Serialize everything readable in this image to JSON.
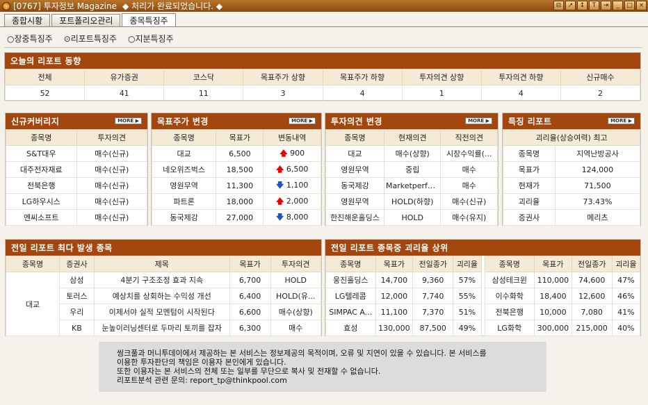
{
  "window": {
    "title": "[0767] 투자정보 Magazine",
    "status": "◆ 처리가 완료되었습니다. ◆",
    "controls": [
      "⊟",
      "↗",
      "↕",
      "T",
      "⇥",
      "_",
      "□",
      "×"
    ]
  },
  "tabs": [
    "종합시황",
    "포트폴리오관리",
    "종목특징주"
  ],
  "radios": [
    "○장중특징주",
    "⊙리포트특징주",
    "○지분특징주"
  ],
  "more": "MORE ▶",
  "today": {
    "title": "오늘의 리포트 동향",
    "headers": [
      "전체",
      "유가증권",
      "코스닥",
      "목표주가 상향",
      "목표주가 하향",
      "투자의견 상향",
      "투자의견 하향",
      "신규매수"
    ],
    "values": [
      "52",
      "41",
      "11",
      "3",
      "4",
      "1",
      "4",
      "2"
    ]
  },
  "coverage": {
    "title": "신규커버리지",
    "headers": [
      "종목명",
      "투자의견"
    ],
    "rows": [
      [
        "S&T대우",
        "매수(신규)"
      ],
      [
        "대주전자재료",
        "매수(신규)"
      ],
      [
        "전북은행",
        "매수(신규)"
      ],
      [
        "LG하우시스",
        "매수(신규)"
      ],
      [
        "엔씨소프트",
        "매수(신규)"
      ]
    ]
  },
  "target": {
    "title": "목표주가 변경",
    "headers": [
      "종목명",
      "목표가",
      "변동내역"
    ],
    "rows": [
      {
        "name": "대교",
        "price": "6,500",
        "dir": "up",
        "change": "900"
      },
      {
        "name": "네오위즈벅스",
        "price": "18,500",
        "dir": "up",
        "change": "6,500"
      },
      {
        "name": "영원무역",
        "price": "11,300",
        "dir": "down",
        "change": "1,100"
      },
      {
        "name": "파트론",
        "price": "18,000",
        "dir": "up",
        "change": "2,000"
      },
      {
        "name": "동국제강",
        "price": "27,000",
        "dir": "down",
        "change": "8,000"
      }
    ]
  },
  "opinion": {
    "title": "투자의견 변경",
    "headers": [
      "종목명",
      "현재의견",
      "직전의견"
    ],
    "rows": [
      [
        "대교",
        "매수(상향)",
        "시장수익률(..."
      ],
      [
        "영원무역",
        "중립",
        "매수"
      ],
      [
        "동국제강",
        "Marketperfo...",
        "매수"
      ],
      [
        "영원무역",
        "HOLD(하향)",
        "매수(신규)"
      ],
      [
        "한진해운홀딩스",
        "HOLD",
        "매수(유지)"
      ]
    ]
  },
  "feature": {
    "title": "특징 리포트",
    "subtitle": "괴리율(상승여력) 최고",
    "rows": [
      [
        "종목명",
        "지역난방공사"
      ],
      [
        "목표가",
        "124,000"
      ],
      [
        "현재가",
        "71,500"
      ],
      [
        "괴리율",
        "73.43%"
      ],
      [
        "증권사",
        "메리츠"
      ]
    ]
  },
  "most": {
    "title": "전일 리포트 최다 발생 종목",
    "headers": [
      "종목명",
      "증권사",
      "제목",
      "목표가",
      "투자의견"
    ],
    "stock": "대교",
    "rows": [
      [
        "삼성",
        "4분기 구조조정 효과 지속",
        "6,700",
        "HOLD"
      ],
      [
        "토러스",
        "예상치를 상회하는 수익성 개선",
        "6,400",
        "HOLD(유..."
      ],
      [
        "우리",
        "이제서야 실적 모멘텀이 시작된다",
        "6,600",
        "매수(상향)"
      ],
      [
        "KB",
        "눈높이러닝센터로 두마리 토끼를 잡자",
        "6,300",
        "매수"
      ]
    ]
  },
  "gap": {
    "title": "전일 리포트 종목중 괴리율 상위",
    "headers": [
      "종목명",
      "목표가",
      "전일종가",
      "괴리율"
    ],
    "left": [
      [
        "웅진홀딩스",
        "14,700",
        "9,360",
        "57%"
      ],
      [
        "LG텔레콤",
        "12,000",
        "7,740",
        "55%"
      ],
      [
        "SIMPAC A...",
        "11,100",
        "7,370",
        "51%"
      ],
      [
        "효성",
        "130,000",
        "87,500",
        "49%"
      ]
    ],
    "right": [
      [
        "삼성테크윈",
        "110,000",
        "74,600",
        "47%"
      ],
      [
        "이수화학",
        "18,400",
        "12,600",
        "46%"
      ],
      [
        "전북은행",
        "10,000",
        "7,080",
        "41%"
      ],
      [
        "LG화학",
        "300,000",
        "215,000",
        "40%"
      ]
    ]
  },
  "notice": [
    "씽크풀과 머니투데이에서 제공하는 본 서비스는 정보제공의 목적이며, 오류 및 지연이 있을 수 있습니다. 본 서비스를",
    "이용한 투자판단의 책임은 이용자 본인에게 있습니다.",
    "또한 이용자는 본 서비스의 전체 또는 일부를 무단으로 복사 및 전재할 수 없습니다.",
    "리포트분석 관련 문의: report_tp@thinkpool.com"
  ]
}
